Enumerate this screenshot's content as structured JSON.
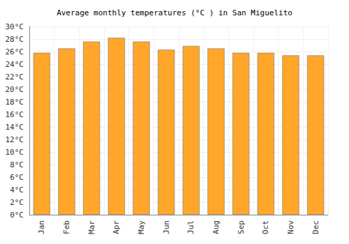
{
  "chart_data": {
    "type": "bar",
    "title": "Average monthly temperatures (°C ) in San Miguelito",
    "categories": [
      "Jan",
      "Feb",
      "Mar",
      "Apr",
      "May",
      "Jun",
      "Jul",
      "Aug",
      "Sep",
      "Oct",
      "Nov",
      "Dec"
    ],
    "values": [
      25.8,
      26.5,
      27.6,
      28.2,
      27.6,
      26.3,
      26.9,
      26.5,
      25.8,
      25.8,
      25.4,
      25.4
    ],
    "color": "#ffa62b",
    "ylim": [
      0,
      30
    ],
    "yticks": [
      {
        "value": 0,
        "label": "0°C"
      },
      {
        "value": 2,
        "label": "2°C"
      },
      {
        "value": 4,
        "label": "4°C"
      },
      {
        "value": 6,
        "label": "6°C"
      },
      {
        "value": 8,
        "label": "8°C"
      },
      {
        "value": 10,
        "label": "10°C"
      },
      {
        "value": 12,
        "label": "12°C"
      },
      {
        "value": 14,
        "label": "14°C"
      },
      {
        "value": 16,
        "label": "16°C"
      },
      {
        "value": 18,
        "label": "18°C"
      },
      {
        "value": 20,
        "label": "20°C"
      },
      {
        "value": 22,
        "label": "22°C"
      },
      {
        "value": 24,
        "label": "24°C"
      },
      {
        "value": 26,
        "label": "26°C"
      },
      {
        "value": 28,
        "label": "28°C"
      },
      {
        "value": 30,
        "label": "30°C"
      }
    ],
    "grid": true
  }
}
